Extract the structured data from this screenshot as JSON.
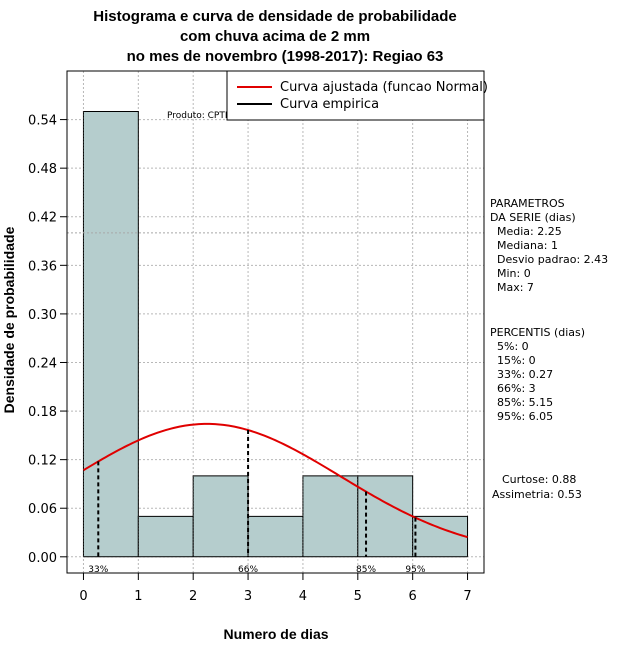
{
  "chart_data": {
    "type": "bar",
    "title_lines": [
      "Histograma e curva de densidade de probabilidade",
      "com chuva acima de 2 mm",
      "no mes de novembro (1998-2017): Regiao 63"
    ],
    "xlabel": "Numero de dias",
    "ylabel": "Densidade de probabilidade",
    "xlim": [
      -0.3,
      7.3
    ],
    "ylim": [
      -0.02,
      0.6
    ],
    "x_ticks": [
      0,
      1,
      2,
      3,
      4,
      5,
      6,
      7
    ],
    "y_ticks": [
      0.0,
      0.06,
      0.12,
      0.18,
      0.24,
      0.3,
      0.36,
      0.42,
      0.48,
      0.54
    ],
    "y_tick_labels": [
      "0.00",
      "0.06",
      "0.12",
      "0.18",
      "0.24",
      "0.30",
      "0.36",
      "0.42",
      "0.48",
      "0.54"
    ],
    "bins": [
      {
        "from": 0,
        "to": 1,
        "density": 0.55
      },
      {
        "from": 1,
        "to": 2,
        "density": 0.05
      },
      {
        "from": 2,
        "to": 3,
        "density": 0.1
      },
      {
        "from": 3,
        "to": 4,
        "density": 0.05
      },
      {
        "from": 4,
        "to": 5,
        "density": 0.1
      },
      {
        "from": 5,
        "to": 6,
        "density": 0.1
      },
      {
        "from": 6,
        "to": 7,
        "density": 0.05
      }
    ],
    "normal_fit": {
      "mean": 2.25,
      "sd": 2.43,
      "x_from": 0,
      "x_to": 7
    },
    "hline_y": 0.4,
    "percentile_markers": [
      {
        "x": 0.27,
        "label": "33%"
      },
      {
        "x": 3,
        "label": "66%"
      },
      {
        "x": 5.15,
        "label": "85%"
      },
      {
        "x": 6.05,
        "label": "95%"
      }
    ],
    "product_label": "Produto: CPTEC/INPE",
    "legend": [
      {
        "label": "Curva ajustada (funcao Normal)",
        "color": "#e00000"
      },
      {
        "label": "Curva empirica",
        "color": "#000000"
      }
    ],
    "legend_position": "top-right",
    "bar_fill": "#b5cdcd",
    "grid": true
  },
  "side_panel": {
    "parametros": [
      "PARAMETROS",
      "DA SERIE (dias)",
      "  Media: 2.25",
      "  Mediana: 1",
      "  Desvio padrao: 2.43",
      "  Min: 0",
      "  Max: 7"
    ],
    "percentis": [
      "PERCENTIS (dias)",
      "  5%: 0",
      "  15%: 0",
      "  33%: 0.27",
      "  66%: 3",
      "  85%: 5.15",
      "  95%: 6.05"
    ],
    "curtose": "Curtose: 0.88",
    "assimetria": "Assimetria: 0.53"
  }
}
